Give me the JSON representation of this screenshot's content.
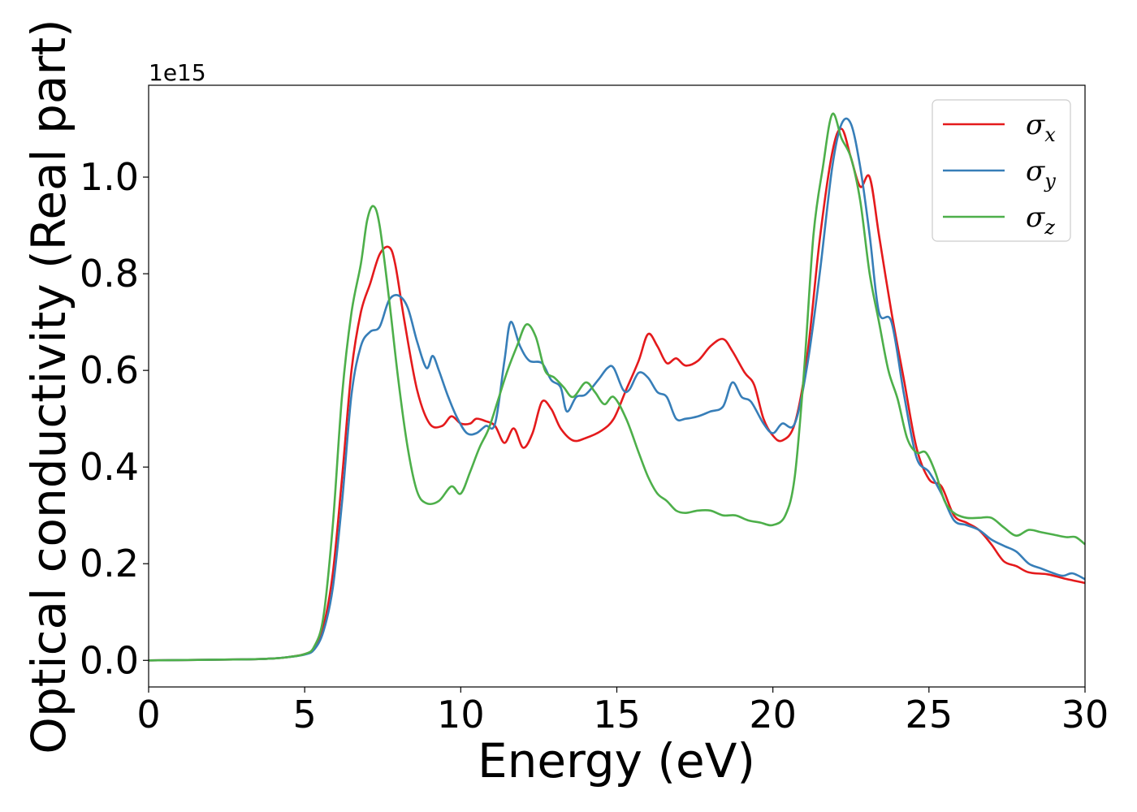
{
  "chart_data": {
    "type": "line",
    "xlabel": "Energy (eV)",
    "ylabel": "Optical conductivity (Real part)",
    "y_offset_text": "1e15",
    "xlim": [
      0,
      30
    ],
    "ylim": [
      -0.055,
      1.19
    ],
    "x_ticks": [
      0,
      5,
      10,
      15,
      20,
      25,
      30
    ],
    "x_tick_labels": [
      "0",
      "5",
      "10",
      "15",
      "20",
      "25",
      "30"
    ],
    "y_ticks": [
      0.0,
      0.2,
      0.4,
      0.6,
      0.8,
      1.0
    ],
    "y_tick_labels": [
      "0.0",
      "0.2",
      "0.4",
      "0.6",
      "0.8",
      "1.0"
    ],
    "grid": false,
    "legend_position": "top-right",
    "series": [
      {
        "name": "σx",
        "legend_base": "σ",
        "legend_sub": "x",
        "color": "#e41a1c",
        "points": [
          [
            0,
            0
          ],
          [
            3,
            0.002
          ],
          [
            4,
            0.004
          ],
          [
            4.5,
            0.007
          ],
          [
            5,
            0.013
          ],
          [
            5.3,
            0.025
          ],
          [
            5.6,
            0.07
          ],
          [
            5.9,
            0.18
          ],
          [
            6.2,
            0.38
          ],
          [
            6.5,
            0.6
          ],
          [
            6.8,
            0.72
          ],
          [
            7.1,
            0.78
          ],
          [
            7.4,
            0.84
          ],
          [
            7.7,
            0.855
          ],
          [
            7.9,
            0.82
          ],
          [
            8.2,
            0.7
          ],
          [
            8.6,
            0.56
          ],
          [
            9.0,
            0.49
          ],
          [
            9.4,
            0.485
          ],
          [
            9.7,
            0.505
          ],
          [
            10.0,
            0.49
          ],
          [
            10.3,
            0.49
          ],
          [
            10.5,
            0.5
          ],
          [
            10.8,
            0.495
          ],
          [
            11.1,
            0.485
          ],
          [
            11.4,
            0.45
          ],
          [
            11.7,
            0.48
          ],
          [
            12.0,
            0.44
          ],
          [
            12.3,
            0.47
          ],
          [
            12.6,
            0.535
          ],
          [
            12.9,
            0.52
          ],
          [
            13.2,
            0.48
          ],
          [
            13.6,
            0.455
          ],
          [
            14.0,
            0.46
          ],
          [
            14.5,
            0.475
          ],
          [
            14.9,
            0.5
          ],
          [
            15.3,
            0.56
          ],
          [
            15.7,
            0.62
          ],
          [
            16.0,
            0.675
          ],
          [
            16.3,
            0.65
          ],
          [
            16.6,
            0.615
          ],
          [
            16.9,
            0.625
          ],
          [
            17.2,
            0.61
          ],
          [
            17.6,
            0.62
          ],
          [
            18.0,
            0.65
          ],
          [
            18.4,
            0.665
          ],
          [
            18.7,
            0.64
          ],
          [
            19.1,
            0.595
          ],
          [
            19.4,
            0.57
          ],
          [
            19.7,
            0.5
          ],
          [
            20.0,
            0.465
          ],
          [
            20.3,
            0.455
          ],
          [
            20.7,
            0.49
          ],
          [
            21.1,
            0.63
          ],
          [
            21.5,
            0.87
          ],
          [
            21.9,
            1.05
          ],
          [
            22.2,
            1.1
          ],
          [
            22.5,
            1.04
          ],
          [
            22.8,
            0.98
          ],
          [
            23.1,
            1.0
          ],
          [
            23.4,
            0.88
          ],
          [
            23.8,
            0.72
          ],
          [
            24.2,
            0.58
          ],
          [
            24.6,
            0.44
          ],
          [
            25.0,
            0.375
          ],
          [
            25.4,
            0.36
          ],
          [
            25.8,
            0.3
          ],
          [
            26.2,
            0.285
          ],
          [
            26.6,
            0.27
          ],
          [
            27.0,
            0.24
          ],
          [
            27.4,
            0.205
          ],
          [
            27.8,
            0.195
          ],
          [
            28.2,
            0.182
          ],
          [
            28.8,
            0.178
          ],
          [
            29.3,
            0.17
          ],
          [
            30.0,
            0.16
          ]
        ]
      },
      {
        "name": "σy",
        "legend_base": "σ",
        "legend_sub": "y",
        "color": "#377eb8",
        "points": [
          [
            0,
            0
          ],
          [
            3,
            0.002
          ],
          [
            4,
            0.004
          ],
          [
            4.5,
            0.007
          ],
          [
            5,
            0.012
          ],
          [
            5.3,
            0.022
          ],
          [
            5.6,
            0.06
          ],
          [
            5.9,
            0.15
          ],
          [
            6.2,
            0.33
          ],
          [
            6.5,
            0.55
          ],
          [
            6.8,
            0.65
          ],
          [
            7.1,
            0.68
          ],
          [
            7.4,
            0.69
          ],
          [
            7.7,
            0.745
          ],
          [
            8.0,
            0.755
          ],
          [
            8.3,
            0.73
          ],
          [
            8.6,
            0.66
          ],
          [
            8.9,
            0.605
          ],
          [
            9.1,
            0.63
          ],
          [
            9.3,
            0.6
          ],
          [
            9.6,
            0.545
          ],
          [
            9.9,
            0.5
          ],
          [
            10.2,
            0.47
          ],
          [
            10.5,
            0.47
          ],
          [
            10.8,
            0.485
          ],
          [
            11.1,
            0.49
          ],
          [
            11.4,
            0.62
          ],
          [
            11.6,
            0.7
          ],
          [
            11.9,
            0.65
          ],
          [
            12.2,
            0.62
          ],
          [
            12.6,
            0.615
          ],
          [
            12.9,
            0.58
          ],
          [
            13.2,
            0.565
          ],
          [
            13.4,
            0.515
          ],
          [
            13.7,
            0.545
          ],
          [
            14.0,
            0.55
          ],
          [
            14.4,
            0.58
          ],
          [
            14.7,
            0.605
          ],
          [
            14.9,
            0.605
          ],
          [
            15.2,
            0.56
          ],
          [
            15.4,
            0.56
          ],
          [
            15.7,
            0.595
          ],
          [
            16.0,
            0.585
          ],
          [
            16.3,
            0.555
          ],
          [
            16.6,
            0.545
          ],
          [
            16.9,
            0.5
          ],
          [
            17.2,
            0.5
          ],
          [
            17.6,
            0.505
          ],
          [
            18.0,
            0.515
          ],
          [
            18.4,
            0.525
          ],
          [
            18.7,
            0.575
          ],
          [
            19.0,
            0.545
          ],
          [
            19.3,
            0.535
          ],
          [
            19.7,
            0.49
          ],
          [
            20.0,
            0.47
          ],
          [
            20.3,
            0.49
          ],
          [
            20.7,
            0.49
          ],
          [
            21.1,
            0.61
          ],
          [
            21.5,
            0.8
          ],
          [
            21.9,
            1.02
          ],
          [
            22.2,
            1.11
          ],
          [
            22.5,
            1.11
          ],
          [
            22.8,
            1.02
          ],
          [
            23.1,
            0.88
          ],
          [
            23.4,
            0.72
          ],
          [
            23.8,
            0.7
          ],
          [
            24.2,
            0.55
          ],
          [
            24.6,
            0.42
          ],
          [
            25.0,
            0.39
          ],
          [
            25.4,
            0.345
          ],
          [
            25.8,
            0.29
          ],
          [
            26.2,
            0.28
          ],
          [
            26.6,
            0.27
          ],
          [
            27.0,
            0.25
          ],
          [
            27.4,
            0.237
          ],
          [
            27.8,
            0.225
          ],
          [
            28.2,
            0.2
          ],
          [
            28.6,
            0.19
          ],
          [
            29.0,
            0.18
          ],
          [
            29.3,
            0.175
          ],
          [
            29.6,
            0.18
          ],
          [
            30.0,
            0.168
          ]
        ]
      },
      {
        "name": "σz",
        "legend_base": "σ",
        "legend_sub": "z",
        "color": "#4daf4a",
        "points": [
          [
            0,
            0
          ],
          [
            3,
            0.002
          ],
          [
            4,
            0.004
          ],
          [
            4.5,
            0.007
          ],
          [
            5,
            0.013
          ],
          [
            5.3,
            0.028
          ],
          [
            5.6,
            0.09
          ],
          [
            5.9,
            0.28
          ],
          [
            6.2,
            0.55
          ],
          [
            6.5,
            0.72
          ],
          [
            6.8,
            0.82
          ],
          [
            7.0,
            0.91
          ],
          [
            7.2,
            0.94
          ],
          [
            7.4,
            0.9
          ],
          [
            7.7,
            0.75
          ],
          [
            8.0,
            0.58
          ],
          [
            8.3,
            0.44
          ],
          [
            8.6,
            0.35
          ],
          [
            8.9,
            0.325
          ],
          [
            9.3,
            0.33
          ],
          [
            9.7,
            0.36
          ],
          [
            10.0,
            0.345
          ],
          [
            10.3,
            0.39
          ],
          [
            10.6,
            0.44
          ],
          [
            10.9,
            0.48
          ],
          [
            11.2,
            0.54
          ],
          [
            11.5,
            0.6
          ],
          [
            11.8,
            0.65
          ],
          [
            12.1,
            0.695
          ],
          [
            12.4,
            0.67
          ],
          [
            12.7,
            0.6
          ],
          [
            13.0,
            0.585
          ],
          [
            13.3,
            0.565
          ],
          [
            13.6,
            0.545
          ],
          [
            14.0,
            0.575
          ],
          [
            14.3,
            0.555
          ],
          [
            14.6,
            0.53
          ],
          [
            14.9,
            0.545
          ],
          [
            15.3,
            0.5
          ],
          [
            15.7,
            0.43
          ],
          [
            16.0,
            0.38
          ],
          [
            16.3,
            0.345
          ],
          [
            16.6,
            0.33
          ],
          [
            16.9,
            0.31
          ],
          [
            17.2,
            0.305
          ],
          [
            17.6,
            0.31
          ],
          [
            18.0,
            0.31
          ],
          [
            18.4,
            0.3
          ],
          [
            18.8,
            0.3
          ],
          [
            19.2,
            0.29
          ],
          [
            19.6,
            0.285
          ],
          [
            20.0,
            0.28
          ],
          [
            20.4,
            0.3
          ],
          [
            20.7,
            0.38
          ],
          [
            21.0,
            0.6
          ],
          [
            21.3,
            0.88
          ],
          [
            21.6,
            1.02
          ],
          [
            21.9,
            1.13
          ],
          [
            22.2,
            1.08
          ],
          [
            22.5,
            1.04
          ],
          [
            22.8,
            0.95
          ],
          [
            23.1,
            0.8
          ],
          [
            23.4,
            0.7
          ],
          [
            23.7,
            0.6
          ],
          [
            24.0,
            0.54
          ],
          [
            24.3,
            0.46
          ],
          [
            24.6,
            0.43
          ],
          [
            24.9,
            0.43
          ],
          [
            25.2,
            0.39
          ],
          [
            25.5,
            0.33
          ],
          [
            25.8,
            0.305
          ],
          [
            26.2,
            0.295
          ],
          [
            26.6,
            0.295
          ],
          [
            27.0,
            0.295
          ],
          [
            27.4,
            0.275
          ],
          [
            27.8,
            0.258
          ],
          [
            28.2,
            0.27
          ],
          [
            28.6,
            0.265
          ],
          [
            29.0,
            0.26
          ],
          [
            29.4,
            0.255
          ],
          [
            29.7,
            0.255
          ],
          [
            30.0,
            0.24
          ]
        ]
      }
    ]
  }
}
